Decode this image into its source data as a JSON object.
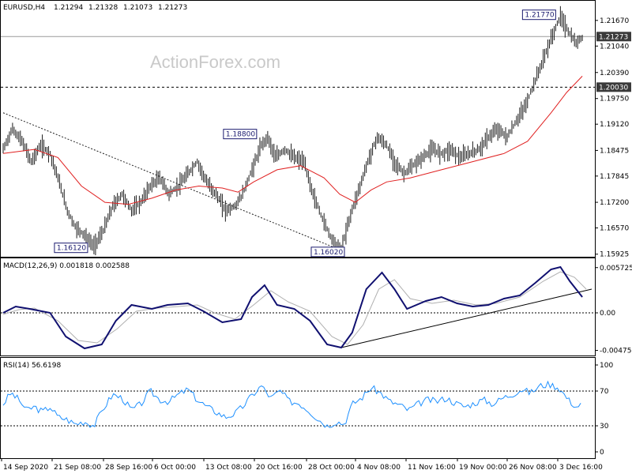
{
  "chart_data": [
    {
      "type": "ohlc",
      "title": "EURUSD,H4",
      "ohlc_header": [
        "1.21294",
        "1.21328",
        "1.21073",
        "1.21273"
      ],
      "watermark": "ActionForex.com",
      "ylim": [
        1.1592,
        1.219
      ],
      "yticks": [
        "1.21670",
        "1.21040",
        "1.20390",
        "1.19750",
        "1.19120",
        "1.18475",
        "1.17845",
        "1.17200",
        "1.16570",
        "1.15925"
      ],
      "current_price": "1.21273",
      "level_line": "1.20030",
      "annotations": [
        "1.21770",
        "1.18800",
        "1.16120",
        "1.16020"
      ],
      "trendline": [
        {
          "x": 0,
          "y": 1.194
        },
        {
          "x": 432,
          "y": 1.1602
        }
      ],
      "price_path": [
        [
          0,
          1.185
        ],
        [
          12,
          1.19
        ],
        [
          24,
          1.187
        ],
        [
          36,
          1.182
        ],
        [
          48,
          1.186
        ],
        [
          60,
          1.184
        ],
        [
          70,
          1.178
        ],
        [
          82,
          1.17
        ],
        [
          92,
          1.166
        ],
        [
          104,
          1.164
        ],
        [
          116,
          1.1612
        ],
        [
          128,
          1.165
        ],
        [
          140,
          1.171
        ],
        [
          152,
          1.174
        ],
        [
          164,
          1.17
        ],
        [
          176,
          1.172
        ],
        [
          188,
          1.176
        ],
        [
          200,
          1.178
        ],
        [
          212,
          1.174
        ],
        [
          224,
          1.176
        ],
        [
          236,
          1.179
        ],
        [
          248,
          1.182
        ],
        [
          260,
          1.177
        ],
        [
          272,
          1.174
        ],
        [
          284,
          1.17
        ],
        [
          296,
          1.171
        ],
        [
          306,
          1.174
        ],
        [
          318,
          1.18
        ],
        [
          330,
          1.186
        ],
        [
          338,
          1.188
        ],
        [
          348,
          1.183
        ],
        [
          360,
          1.185
        ],
        [
          372,
          1.183
        ],
        [
          384,
          1.182
        ],
        [
          396,
          1.174
        ],
        [
          408,
          1.168
        ],
        [
          420,
          1.163
        ],
        [
          432,
          1.1602
        ],
        [
          444,
          1.169
        ],
        [
          456,
          1.176
        ],
        [
          466,
          1.182
        ],
        [
          478,
          1.188
        ],
        [
          490,
          1.186
        ],
        [
          500,
          1.182
        ],
        [
          512,
          1.179
        ],
        [
          524,
          1.181
        ],
        [
          536,
          1.183
        ],
        [
          548,
          1.185
        ],
        [
          560,
          1.184
        ],
        [
          572,
          1.185
        ],
        [
          584,
          1.183
        ],
        [
          596,
          1.184
        ],
        [
          608,
          1.185
        ],
        [
          620,
          1.188
        ],
        [
          632,
          1.19
        ],
        [
          644,
          1.188
        ],
        [
          656,
          1.192
        ],
        [
          668,
          1.196
        ],
        [
          680,
          1.202
        ],
        [
          692,
          1.208
        ],
        [
          704,
          1.214
        ],
        [
          712,
          1.2177
        ],
        [
          722,
          1.214
        ],
        [
          732,
          1.211
        ],
        [
          740,
          1.2127
        ]
      ],
      "ma_path": [
        [
          0,
          1.184
        ],
        [
          40,
          1.185
        ],
        [
          70,
          1.183
        ],
        [
          100,
          1.176
        ],
        [
          130,
          1.172
        ],
        [
          160,
          1.1715
        ],
        [
          190,
          1.173
        ],
        [
          220,
          1.175
        ],
        [
          250,
          1.176
        ],
        [
          280,
          1.1755
        ],
        [
          300,
          1.1745
        ],
        [
          320,
          1.177
        ],
        [
          350,
          1.18
        ],
        [
          380,
          1.181
        ],
        [
          410,
          1.178
        ],
        [
          430,
          1.174
        ],
        [
          450,
          1.172
        ],
        [
          470,
          1.175
        ],
        [
          490,
          1.177
        ],
        [
          520,
          1.178
        ],
        [
          560,
          1.18
        ],
        [
          600,
          1.182
        ],
        [
          640,
          1.184
        ],
        [
          670,
          1.187
        ],
        [
          700,
          1.194
        ],
        [
          720,
          1.199
        ],
        [
          740,
          1.203
        ]
      ]
    },
    {
      "type": "line",
      "title": "MACD(12,26,9) 0.001818 0.002588",
      "ylim": [
        -0.005,
        0.006
      ],
      "yticks": [
        "0.005725",
        "0.00",
        "-0.004755"
      ],
      "trendline": [
        {
          "x": 432,
          "y": -0.0044
        },
        {
          "x": 752,
          "y": 0.003
        }
      ],
      "series": [
        {
          "values": [
            [
              0,
              0.0
            ],
            [
              16,
              0.0008
            ],
            [
              34,
              0.0005
            ],
            [
              60,
              0.0
            ],
            [
              80,
              -0.003
            ],
            [
              104,
              -0.0045
            ],
            [
              126,
              -0.004
            ],
            [
              144,
              -0.001
            ],
            [
              164,
              0.001
            ],
            [
              190,
              0.0005
            ],
            [
              210,
              0.001
            ],
            [
              236,
              0.0012
            ],
            [
              256,
              0.0002
            ],
            [
              280,
              -0.0012
            ],
            [
              304,
              -0.0008
            ],
            [
              318,
              0.002
            ],
            [
              334,
              0.0035
            ],
            [
              350,
              0.001
            ],
            [
              372,
              0.0005
            ],
            [
              392,
              -0.001
            ],
            [
              414,
              -0.004
            ],
            [
              432,
              -0.0044
            ],
            [
              446,
              -0.0025
            ],
            [
              464,
              0.003
            ],
            [
              484,
              0.0051
            ],
            [
              500,
              0.003
            ],
            [
              516,
              0.0005
            ],
            [
              540,
              0.0015
            ],
            [
              560,
              0.002
            ],
            [
              580,
              0.0012
            ],
            [
              600,
              0.0008
            ],
            [
              620,
              0.001
            ],
            [
              640,
              0.0018
            ],
            [
              660,
              0.0022
            ],
            [
              680,
              0.0038
            ],
            [
              700,
              0.0055
            ],
            [
              712,
              0.0058
            ],
            [
              724,
              0.004
            ],
            [
              740,
              0.002
            ]
          ]
        },
        {
          "values": [
            [
              0,
              -0.0002
            ],
            [
              20,
              0.0004
            ],
            [
              40,
              0.0006
            ],
            [
              70,
              -0.001
            ],
            [
              96,
              -0.0035
            ],
            [
              120,
              -0.0038
            ],
            [
              146,
              -0.002
            ],
            [
              170,
              0.0002
            ],
            [
              196,
              0.0006
            ],
            [
              224,
              0.0008
            ],
            [
              248,
              0.001
            ],
            [
              270,
              0.0
            ],
            [
              296,
              -0.0008
            ],
            [
              320,
              0.001
            ],
            [
              342,
              0.0028
            ],
            [
              364,
              0.0014
            ],
            [
              392,
              0.0002
            ],
            [
              420,
              -0.003
            ],
            [
              440,
              -0.004
            ],
            [
              460,
              -0.0015
            ],
            [
              480,
              0.003
            ],
            [
              500,
              0.0042
            ],
            [
              520,
              0.0018
            ],
            [
              548,
              0.0012
            ],
            [
              576,
              0.0016
            ],
            [
              604,
              0.001
            ],
            [
              630,
              0.0012
            ],
            [
              660,
              0.002
            ],
            [
              690,
              0.004
            ],
            [
              712,
              0.0052
            ],
            [
              730,
              0.0045
            ],
            [
              745,
              0.003
            ]
          ]
        }
      ]
    },
    {
      "type": "line",
      "title": "RSI(14) 56.6198",
      "ylim": [
        0,
        100
      ],
      "yticks": [
        "100",
        "70",
        "30",
        "0"
      ],
      "levels": [
        70,
        30
      ],
      "series": [
        {
          "values": [
            [
              0,
              55
            ],
            [
              10,
              68
            ],
            [
              20,
              60
            ],
            [
              30,
              48
            ],
            [
              40,
              52
            ],
            [
              50,
              46
            ],
            [
              60,
              52
            ],
            [
              70,
              40
            ],
            [
              80,
              38
            ],
            [
              92,
              32
            ],
            [
              104,
              35
            ],
            [
              116,
              30
            ],
            [
              128,
              50
            ],
            [
              140,
              66
            ],
            [
              152,
              62
            ],
            [
              164,
              48
            ],
            [
              176,
              55
            ],
            [
              188,
              70
            ],
            [
              200,
              60
            ],
            [
              212,
              58
            ],
            [
              224,
              66
            ],
            [
              236,
              72
            ],
            [
              248,
              60
            ],
            [
              260,
              52
            ],
            [
              272,
              46
            ],
            [
              284,
              40
            ],
            [
              296,
              44
            ],
            [
              306,
              52
            ],
            [
              318,
              65
            ],
            [
              330,
              76
            ],
            [
              342,
              62
            ],
            [
              354,
              70
            ],
            [
              366,
              58
            ],
            [
              378,
              56
            ],
            [
              390,
              48
            ],
            [
              402,
              38
            ],
            [
              414,
              30
            ],
            [
              426,
              35
            ],
            [
              436,
              32
            ],
            [
              446,
              55
            ],
            [
              458,
              62
            ],
            [
              470,
              74
            ],
            [
              482,
              68
            ],
            [
              494,
              58
            ],
            [
              506,
              54
            ],
            [
              518,
              48
            ],
            [
              530,
              55
            ],
            [
              542,
              60
            ],
            [
              554,
              58
            ],
            [
              566,
              62
            ],
            [
              578,
              56
            ],
            [
              590,
              52
            ],
            [
              602,
              56
            ],
            [
              614,
              60
            ],
            [
              626,
              55
            ],
            [
              638,
              62
            ],
            [
              650,
              66
            ],
            [
              662,
              72
            ],
            [
              674,
              68
            ],
            [
              686,
              76
            ],
            [
              698,
              78
            ],
            [
              710,
              74
            ],
            [
              722,
              60
            ],
            [
              732,
              52
            ],
            [
              740,
              55
            ]
          ]
        }
      ]
    }
  ],
  "x_axis": {
    "labels": [
      "14 Sep 2020",
      "21 Sep 08:00",
      "28 Sep 16:00",
      "6 Oct 00:00",
      "13 Oct 08:00",
      "20 Oct 16:00",
      "28 Oct 00:00",
      "4 Nov 08:00",
      "11 Nov 16:00",
      "19 Nov 00:00",
      "26 Nov 08:00",
      "3 Dec 16:00"
    ]
  },
  "colors": {
    "price": "#1c1c1c",
    "ma": "#e02020",
    "macd": "#101070",
    "signal": "#b0b0b0",
    "rsi": "#1e90ff",
    "level_tag": "#3a3a3a"
  }
}
